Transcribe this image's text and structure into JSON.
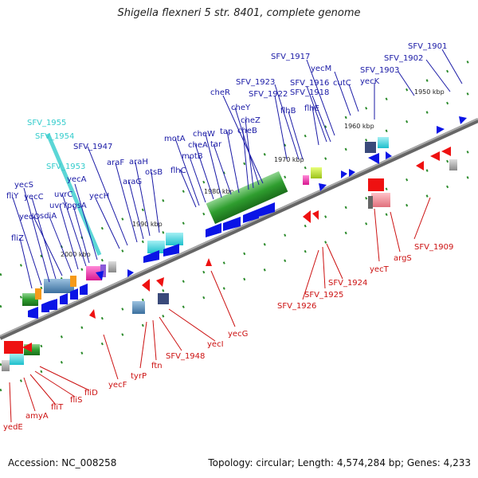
{
  "title": "Shigella flexneri 5 str. 8401, complete genome",
  "footer": {
    "accession": "Accession: NC_008258",
    "topology": "Topology: circular; Length: 4,574,284 bp; Genes: 4,233"
  },
  "axis": {
    "ticks": [
      "1950 kbp",
      "1960 kbp",
      "1970 kbp",
      "1980 kbp",
      "1990 kbp",
      "2000 kbp"
    ]
  },
  "colors": {
    "forward_label": "#1a1aa6",
    "reverse_label": "#cc1111",
    "highlight_label": "#33cccc",
    "forward_gene": "#0a14e6",
    "reverse_gene": "#ee1111",
    "axis_line": "#777777",
    "tick_mark": "#2a8a2a"
  },
  "genes_top": [
    "SFV_1901",
    "SFV_1902",
    "SFV_1903",
    "yecK",
    "SFV_1917",
    "yecM",
    "cutC",
    "SFV_1916",
    "SFV_1918",
    "flhE",
    "SFV_1923",
    "SFV_1922",
    "flhB",
    "cheR",
    "cheY",
    "cheZ",
    "cheB",
    "tap",
    "tar",
    "cheW",
    "cheA",
    "motB",
    "motA",
    "flhC",
    "otsB",
    "araH",
    "araG",
    "araF",
    "SFV_1947",
    "yecH",
    "SFV_1955",
    "SFV_1954",
    "SFV_1953",
    "yecA",
    "uvrC",
    "uvrY",
    "pgsA",
    "sdiA",
    "yedO",
    "yecC",
    "yecS",
    "fliY",
    "fliZ"
  ],
  "highlight_genes": [
    "SFV_1955",
    "SFV_1954",
    "SFV_1953"
  ],
  "genes_bottom": [
    "SFV_1909",
    "argS",
    "yecT",
    "SFV_1924",
    "SFV_1925",
    "SFV_1926",
    "yecG",
    "yecI",
    "SFV_1948",
    "ftn",
    "tyrP",
    "yecF",
    "fliD",
    "fliS",
    "fliT",
    "amyA",
    "yedE"
  ]
}
